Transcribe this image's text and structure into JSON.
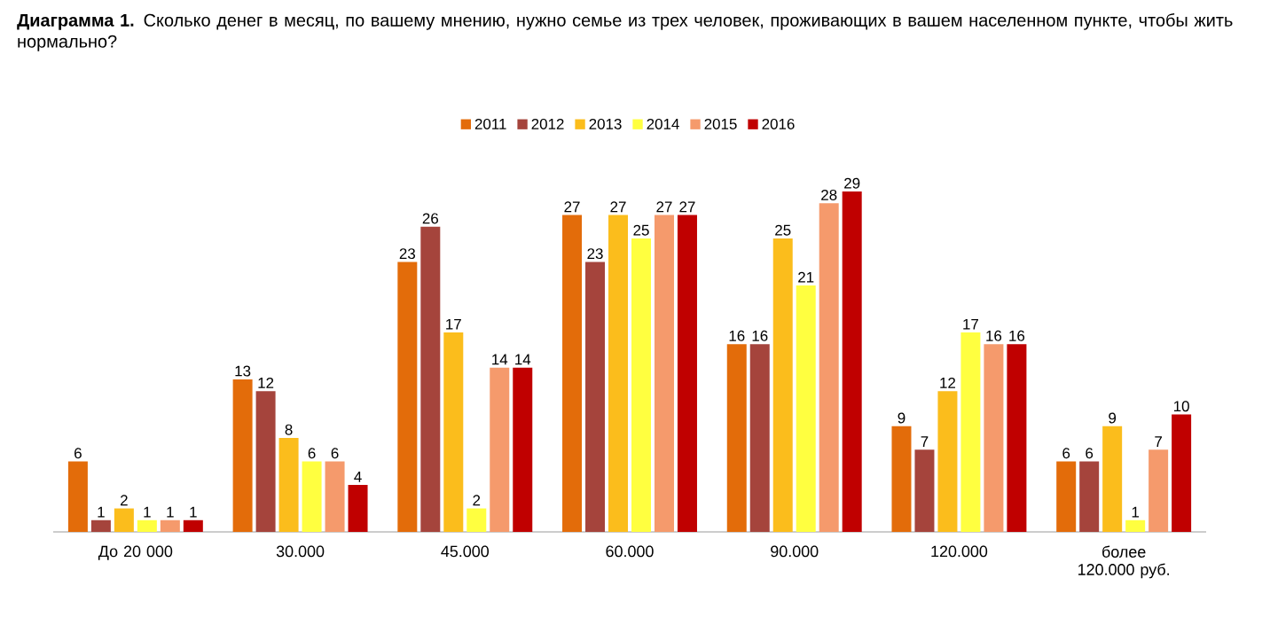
{
  "chart_data": {
    "type": "bar",
    "title": "**Диаграмма 1.** Сколько денег в месяц, по вашему мнению, нужно семье из трех человек, проживающих в вашем населенном пункте, чтобы жить нормально?",
    "categories": [
      "До 20 000",
      "30.000",
      "45.000",
      "60.000",
      "90.000",
      "120.000",
      "более 120.000 руб."
    ],
    "series": [
      {
        "name": "2011",
        "color": "#e36c0a",
        "values": [
          6,
          13,
          23,
          27,
          16,
          9,
          6
        ]
      },
      {
        "name": "2012",
        "color": "#a5443c",
        "values": [
          1,
          12,
          26,
          23,
          16,
          7,
          6
        ]
      },
      {
        "name": "2013",
        "color": "#fbbd1c",
        "values": [
          2,
          8,
          17,
          27,
          25,
          12,
          9
        ]
      },
      {
        "name": "2014",
        "color": "#ffff40",
        "values": [
          1,
          6,
          2,
          25,
          21,
          17,
          1
        ]
      },
      {
        "name": "2015",
        "color": "#f59a6c",
        "values": [
          1,
          6,
          14,
          27,
          28,
          16,
          7
        ]
      },
      {
        "name": "2016",
        "color": "#c00000",
        "values": [
          1,
          4,
          14,
          27,
          29,
          16,
          10
        ]
      }
    ],
    "data_labels": true,
    "legend": "top"
  }
}
